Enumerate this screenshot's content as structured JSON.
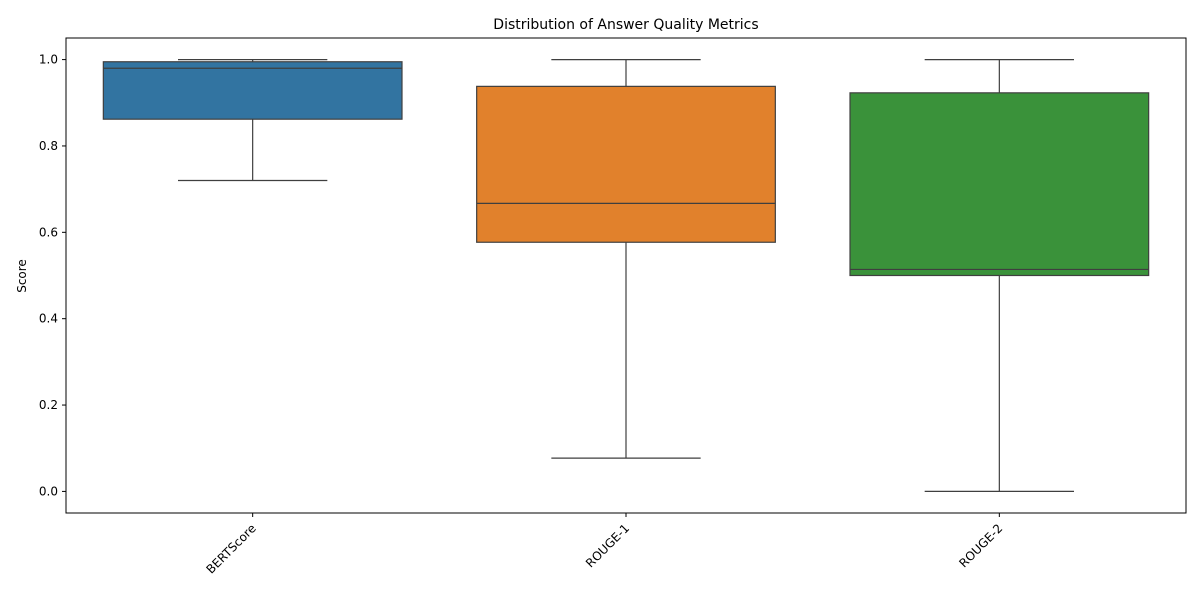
{
  "chart_data": {
    "type": "box",
    "title": "Distribution of Answer Quality Metrics",
    "xlabel": "",
    "ylabel": "Score",
    "ylim": [
      -0.05,
      1.05
    ],
    "yticks": [
      0.0,
      0.2,
      0.4,
      0.6,
      0.8,
      1.0
    ],
    "ytick_labels": [
      "0.0",
      "0.2",
      "0.4",
      "0.6",
      "0.8",
      "1.0"
    ],
    "categories": [
      "BERTScore",
      "ROUGE-1",
      "ROUGE-2"
    ],
    "boxes": [
      {
        "category": "BERTScore",
        "whisker_low": 0.72,
        "q1": 0.862,
        "median": 0.98,
        "q3": 0.995,
        "whisker_high": 1.0,
        "color": "#3274a1"
      },
      {
        "category": "ROUGE-1",
        "whisker_low": 0.077,
        "q1": 0.577,
        "median": 0.667,
        "q3": 0.938,
        "whisker_high": 1.0,
        "color": "#e1812c"
      },
      {
        "category": "ROUGE-2",
        "whisker_low": 0.0,
        "q1": 0.5,
        "median": 0.514,
        "q3": 0.923,
        "whisker_high": 1.0,
        "color": "#3a923a"
      }
    ],
    "grid": false,
    "legend": "none",
    "xtick_rotation_deg": 45
  }
}
